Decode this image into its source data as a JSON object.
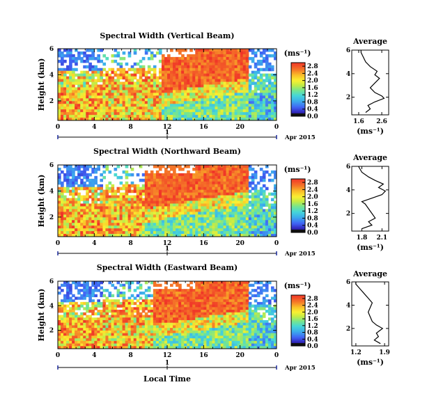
{
  "figure": {
    "xlabel": "Local Time",
    "date_label": "Apr 2015",
    "ylabel": "Height (km)",
    "colorbar_unit": "(ms⁻¹)",
    "average_title": "Average",
    "average_xlabel": "(ms⁻¹)",
    "day_label": "1"
  },
  "chart_data": [
    {
      "type": "heatmap",
      "title": "Spectral Width (Vertical Beam)",
      "xlabel": "",
      "ylabel": "Height (km)",
      "x_ticks": [
        "0",
        "4",
        "8",
        "12",
        "16",
        "20",
        "0"
      ],
      "xlim": [
        0,
        24
      ],
      "y_ticks": [
        "2",
        "4",
        "6"
      ],
      "ylim": [
        0.5,
        6
      ],
      "colorbar": {
        "ticks": [
          "0.0",
          "0.4",
          "0.8",
          "1.2",
          "1.6",
          "2.0",
          "2.4",
          "2.8"
        ],
        "range": [
          0.0,
          3.0
        ]
      },
      "feature": {
        "high_start_h": 11.5,
        "high_peak_h": 17,
        "mid_height": 2.2
      },
      "average_profile": {
        "title": "Average",
        "xlim": [
          1.3,
          2.9
        ],
        "x_ticks": [
          "1.6",
          "2.6"
        ],
        "x_tick_values": [
          1.6,
          2.6
        ],
        "y_ticks": [
          "2",
          "4",
          "6"
        ],
        "heights": [
          0.7,
          1.0,
          1.3,
          1.6,
          1.9,
          2.1,
          2.4,
          2.8,
          3.2,
          3.6,
          3.9,
          4.2,
          4.6,
          5.0,
          5.4,
          5.8,
          6.0
        ],
        "values": [
          1.9,
          2.1,
          2.0,
          2.3,
          2.7,
          2.6,
          2.3,
          2.1,
          2.3,
          2.5,
          2.3,
          2.4,
          2.1,
          1.9,
          1.8,
          1.7,
          1.7
        ]
      }
    },
    {
      "type": "heatmap",
      "title": "Spectral Width (Northward Beam)",
      "xlabel": "",
      "ylabel": "Height (km)",
      "x_ticks": [
        "0",
        "4",
        "8",
        "12",
        "16",
        "20",
        "0"
      ],
      "xlim": [
        0,
        24
      ],
      "y_ticks": [
        "2",
        "4",
        "6"
      ],
      "ylim": [
        0.5,
        6
      ],
      "colorbar": {
        "ticks": [
          "0.0",
          "0.4",
          "0.8",
          "1.2",
          "1.6",
          "2.0",
          "2.4",
          "2.8"
        ],
        "range": [
          0.0,
          3.0
        ]
      },
      "feature": {
        "high_start_h": 9.5,
        "high_peak_h": 17,
        "mid_height": 2.2
      },
      "average_profile": {
        "title": "Average",
        "xlim": [
          1.65,
          2.2
        ],
        "x_ticks": [
          "1.8",
          "2.1"
        ],
        "x_tick_values": [
          1.8,
          2.1
        ],
        "y_ticks": [
          "2",
          "4",
          "6"
        ],
        "heights": [
          0.7,
          1.0,
          1.3,
          1.6,
          2.0,
          2.4,
          2.8,
          3.0,
          3.3,
          3.6,
          3.9,
          4.2,
          4.5,
          4.8,
          5.1,
          5.5,
          6.0
        ],
        "values": [
          1.8,
          1.95,
          1.9,
          2.0,
          1.95,
          1.9,
          1.85,
          1.8,
          1.95,
          2.1,
          2.15,
          2.05,
          2.12,
          2.0,
          1.9,
          1.8,
          1.75
        ]
      }
    },
    {
      "type": "heatmap",
      "title": "Spectral Width (Eastward Beam)",
      "xlabel": "Local Time",
      "ylabel": "Height (km)",
      "x_ticks": [
        "0",
        "4",
        "8",
        "12",
        "16",
        "20",
        "0"
      ],
      "xlim": [
        0,
        24
      ],
      "y_ticks": [
        "2",
        "4",
        "6"
      ],
      "ylim": [
        0.5,
        6
      ],
      "colorbar": {
        "ticks": [
          "0.0",
          "0.4",
          "0.8",
          "1.2",
          "1.6",
          "2.0",
          "2.4",
          "2.8"
        ],
        "range": [
          0.0,
          3.0
        ]
      },
      "feature": {
        "high_start_h": 10.5,
        "high_peak_h": 17,
        "mid_height": 2.0
      },
      "average_profile": {
        "title": "Average",
        "xlim": [
          1.1,
          2.0
        ],
        "x_ticks": [
          "1.2",
          "1.9"
        ],
        "x_tick_values": [
          1.2,
          1.9
        ],
        "y_ticks": [
          "2",
          "4",
          "6"
        ],
        "heights": [
          0.7,
          1.0,
          1.3,
          1.6,
          2.0,
          2.3,
          2.6,
          3.0,
          3.4,
          3.8,
          4.2,
          4.6,
          5.0,
          5.4,
          5.8,
          6.0
        ],
        "values": [
          1.8,
          1.65,
          1.75,
          1.7,
          1.85,
          1.7,
          1.6,
          1.55,
          1.5,
          1.55,
          1.6,
          1.5,
          1.4,
          1.3,
          1.2,
          1.2
        ]
      }
    }
  ]
}
